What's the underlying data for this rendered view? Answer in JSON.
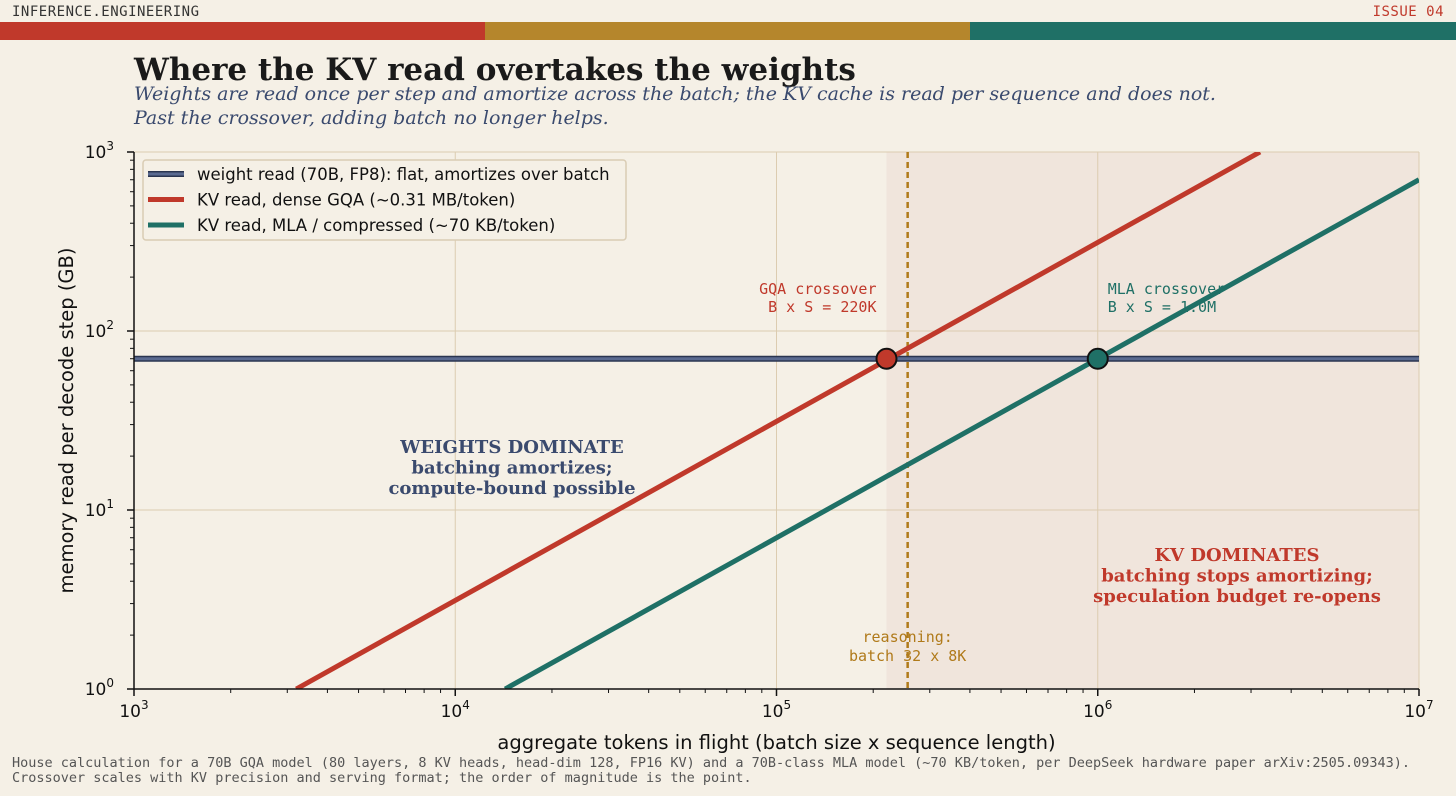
{
  "header": {
    "brand": "INFERENCE.ENGINEERING",
    "issue": "ISSUE 04",
    "stripe_colors": [
      "#c0392b",
      "#b5862c",
      "#1f7066"
    ]
  },
  "colors": {
    "background": "#f5f0e6",
    "weights": "#3a4a6e",
    "gqa": "#c0392b",
    "mla": "#1f7066",
    "reasoning": "#b07a1a",
    "shade": "#f0e5dc",
    "grid": "#dcccb0"
  },
  "footnote": "House calculation for a 70B GQA model (80 layers, 8 KV heads, head-dim 128, FP16 KV) and a 70B-class MLA model (~70 KB/token, per DeepSeek hardware paper arXiv:2505.09343). Crossover scales with KV precision and serving format; the order of magnitude is the point.",
  "chart_data": {
    "type": "line",
    "title": "Where the KV read overtakes the weights",
    "subtitle": "Weights are read once per step and amortize across the batch; the KV cache is read per sequence and does not. Past the crossover, adding batch no longer helps.",
    "xlabel": "aggregate tokens in flight  (batch size x sequence length)",
    "ylabel": "memory read per decode step (GB)",
    "xscale": "log",
    "yscale": "log",
    "xlim": [
      1000,
      10000000
    ],
    "ylim": [
      1,
      1000
    ],
    "x_ticks": [
      {
        "value": 1000,
        "base": "10",
        "exp": "3"
      },
      {
        "value": 10000,
        "base": "10",
        "exp": "4"
      },
      {
        "value": 100000,
        "base": "10",
        "exp": "5"
      },
      {
        "value": 1000000,
        "base": "10",
        "exp": "6"
      },
      {
        "value": 10000000,
        "base": "10",
        "exp": "7"
      }
    ],
    "y_ticks": [
      {
        "value": 1,
        "base": "10",
        "exp": "0"
      },
      {
        "value": 10,
        "base": "10",
        "exp": "1"
      },
      {
        "value": 100,
        "base": "10",
        "exp": "2"
      },
      {
        "value": 1000,
        "base": "10",
        "exp": "3"
      }
    ],
    "grid": true,
    "legend_position": "top-left",
    "series": [
      {
        "name": "weight read (70B, FP8): flat, amortizes over batch",
        "color": "#3a4a6e",
        "x": [
          1000,
          10000000
        ],
        "y": [
          70,
          70
        ]
      },
      {
        "name": "KV read, dense GQA (~0.31 MB/token)",
        "color": "#c0392b",
        "x": [
          3200,
          3200000
        ],
        "y": [
          1,
          1000
        ]
      },
      {
        "name": "KV read, MLA / compressed (~70 KB/token)",
        "color": "#1f7066",
        "x": [
          14300,
          10000000
        ],
        "y": [
          1,
          700
        ]
      }
    ],
    "crossovers": [
      {
        "label_line1": "GQA crossover",
        "label_line2": "B x S = 220K",
        "x": 220000,
        "y": 70,
        "color": "#c0392b"
      },
      {
        "label_line1": "MLA crossover",
        "label_line2": "B x S = 1.0M",
        "x": 1000000,
        "y": 70,
        "color": "#1f7066"
      }
    ],
    "reasoning_marker": {
      "x": 256000,
      "label_line1": "reasoning:",
      "label_line2": "batch 32 x 8K"
    },
    "shaded_region": {
      "x_start": 220000,
      "x_end": 10000000
    },
    "annotations": {
      "weights_region": [
        "WEIGHTS DOMINATE",
        "batching amortizes;",
        "compute-bound possible"
      ],
      "kv_region": [
        "KV DOMINATES",
        "batching stops amortizing;",
        "speculation budget re-opens"
      ]
    }
  }
}
